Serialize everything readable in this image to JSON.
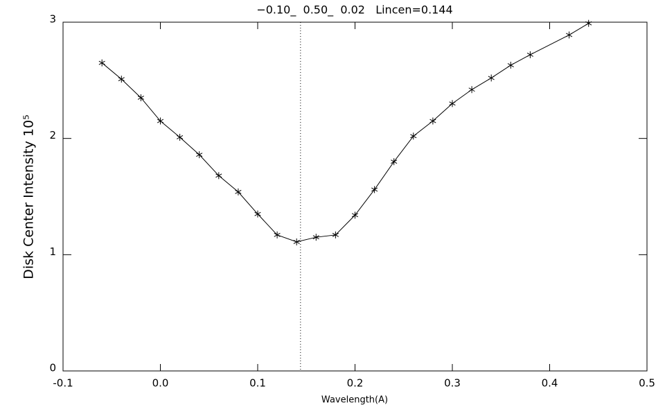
{
  "chart_data": {
    "type": "line",
    "title": "−0.10_  0.50_  0.02   Lincen=0.144",
    "x_label": "Wavelength(A)",
    "y_label": "Disk Center Intensity 10⁵",
    "x": [
      -0.06,
      -0.04,
      -0.02,
      0.0,
      0.02,
      0.04,
      0.06,
      0.08,
      0.1,
      0.12,
      0.14,
      0.16,
      0.18,
      0.2,
      0.22,
      0.24,
      0.26,
      0.28,
      0.3,
      0.32,
      0.34,
      0.36,
      0.38,
      0.42,
      0.44
    ],
    "series": [
      {
        "color": "#000000",
        "marker": "asterisk",
        "values": [
          2.65,
          2.51,
          2.35,
          2.15,
          2.01,
          1.86,
          1.68,
          1.54,
          1.35,
          1.17,
          1.11,
          1.15,
          1.17,
          1.34,
          1.56,
          1.8,
          2.02,
          2.15,
          2.3,
          2.42,
          2.52,
          2.63,
          2.72,
          2.89,
          2.99
        ]
      }
    ],
    "lincen": 0.144,
    "xlim": [
      -0.1,
      0.5
    ],
    "xticks": [
      -0.1,
      {
        "value": 0.0,
        "label": "0.0"
      },
      0.1,
      0.2,
      0.3,
      0.4,
      0.5
    ],
    "ylim": [
      0,
      3
    ],
    "yticks": [
      0,
      1,
      2,
      3
    ],
    "grid": false
  }
}
